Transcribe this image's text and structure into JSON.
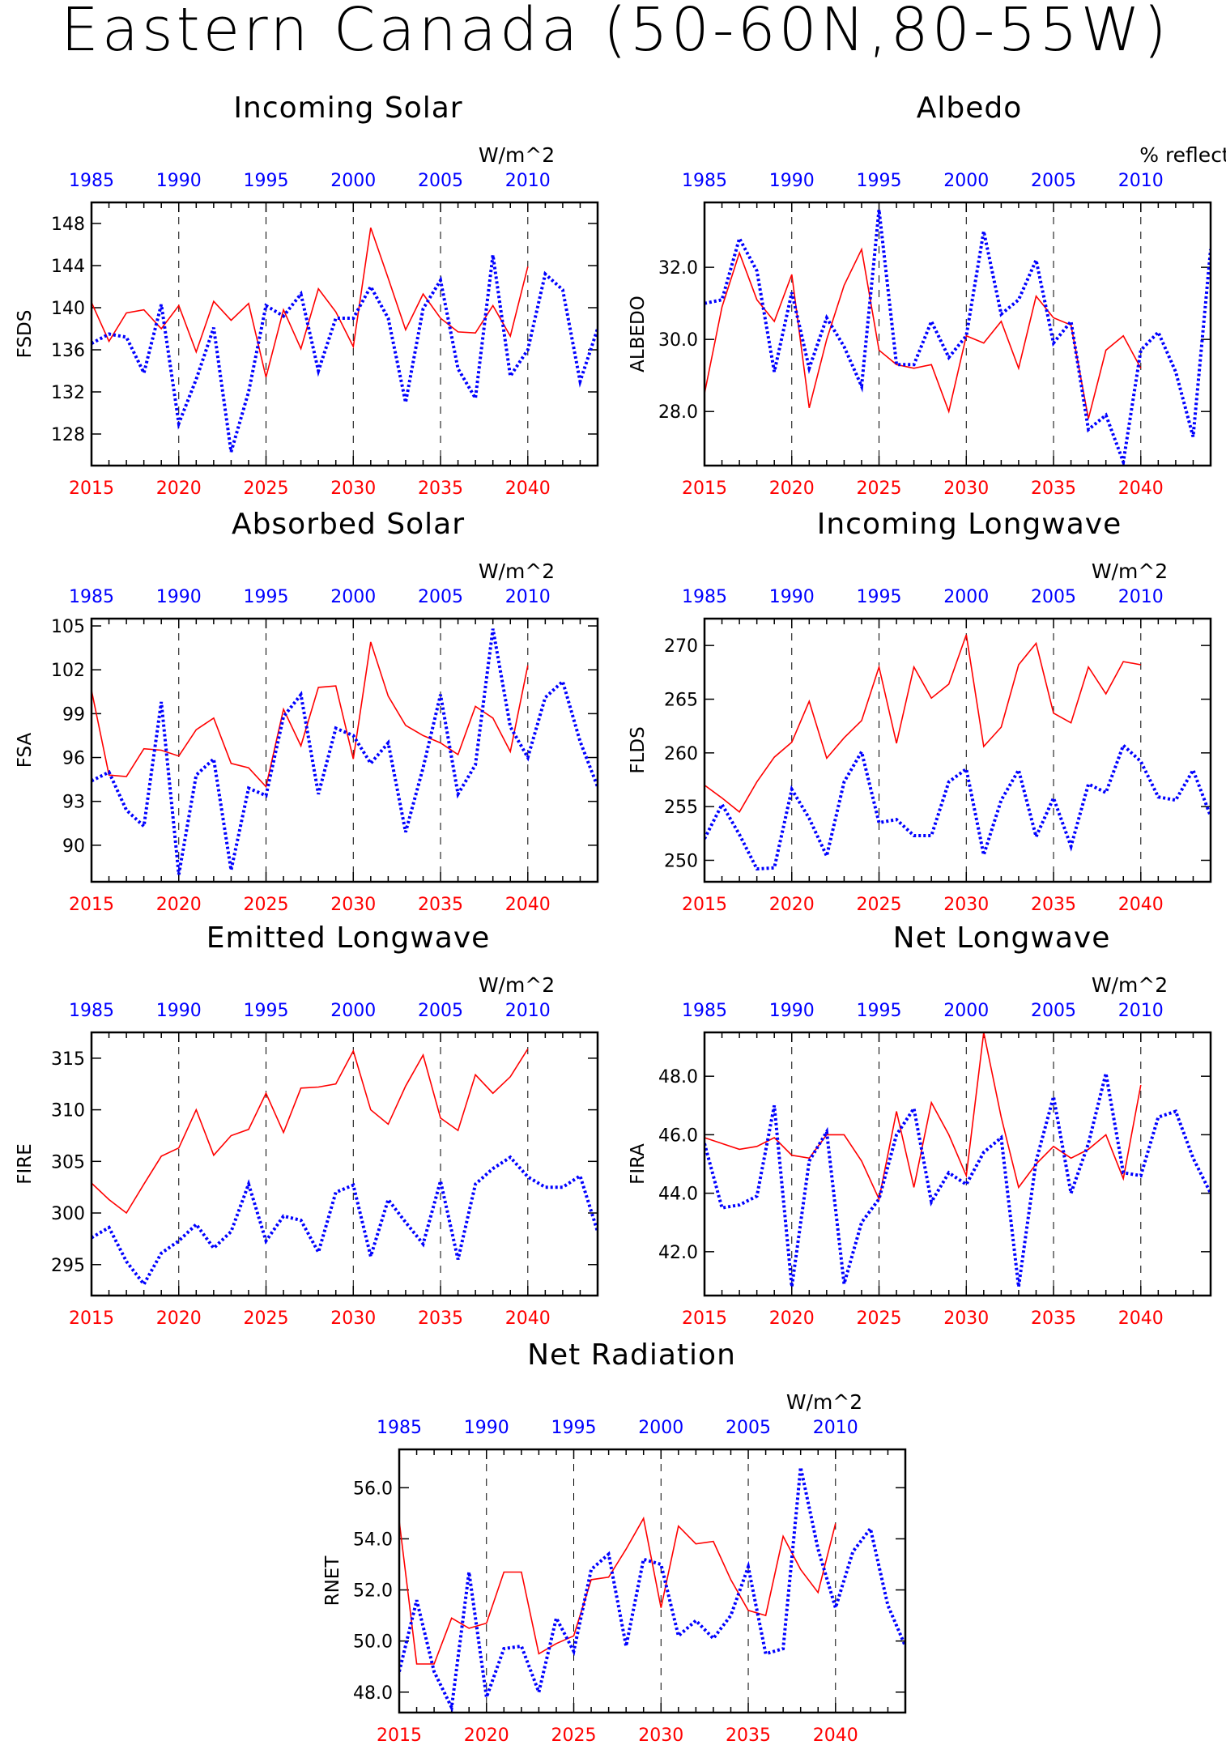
{
  "title": "Eastern Canada (50-60N,80-55W)",
  "colors": {
    "future": "#ff0000",
    "historical": "#0000ff",
    "axis": "#000000"
  },
  "chart_data": [
    {
      "type": "line",
      "title": "Incoming Solar",
      "ylabel": "FSDS",
      "unit": "W/m^2",
      "ylim": [
        125,
        150
      ],
      "yticks": [
        "148",
        "144",
        "140",
        "136",
        "132",
        "128"
      ],
      "bottom_axis_years": [
        "2015",
        "2020",
        "2025",
        "2030",
        "2035",
        "2040"
      ],
      "top_axis_years": [
        "1985",
        "1990",
        "1995",
        "2000",
        "2005",
        "2010"
      ],
      "xlim": [
        2015,
        2044
      ],
      "series": [
        {
          "x": [
            2015,
            2016,
            2017,
            2018,
            2019,
            2020,
            2021,
            2022,
            2023,
            2024,
            2025,
            2026,
            2027,
            2028,
            2029,
            2030,
            2031,
            2032,
            2033,
            2034,
            2035,
            2036,
            2037,
            2038,
            2039,
            2040
          ],
          "values": [
            140.5,
            136.8,
            139.5,
            139.8,
            138.0,
            140.2,
            135.8,
            140.6,
            138.8,
            140.4,
            133.4,
            139.8,
            136.1,
            141.8,
            139.6,
            136.3,
            147.6,
            142.8,
            137.9,
            141.3,
            139.0,
            137.7,
            137.6,
            140.2,
            137.3,
            143.9
          ]
        },
        {
          "x": [
            2015,
            2016,
            2017,
            2018,
            2019,
            2020,
            2021,
            2022,
            2023,
            2024,
            2025,
            2026,
            2027,
            2028,
            2029,
            2030,
            2031,
            2032,
            2033,
            2034,
            2035,
            2036,
            2037,
            2038,
            2039,
            2040,
            2041,
            2042,
            2043,
            2044
          ],
          "values": [
            136.6,
            137.5,
            137.2,
            133.8,
            140.3,
            129.0,
            133.2,
            138.1,
            126.3,
            132.0,
            140.2,
            139.2,
            141.3,
            134.0,
            139.0,
            139.0,
            142.0,
            139.0,
            131.0,
            139.9,
            142.6,
            134.2,
            131.4,
            145.0,
            133.5,
            136.0,
            143.2,
            141.7,
            133.0,
            138.0
          ]
        }
      ]
    },
    {
      "type": "line",
      "title": "Albedo",
      "ylabel": "ALBEDO",
      "unit": "% reflected",
      "ylim": [
        26.5,
        33.8
      ],
      "yticks": [
        "32.0",
        "30.0",
        "28.0"
      ],
      "bottom_axis_years": [
        "2015",
        "2020",
        "2025",
        "2030",
        "2035",
        "2040"
      ],
      "top_axis_years": [
        "1985",
        "1990",
        "1995",
        "2000",
        "2005",
        "2010"
      ],
      "xlim": [
        2015,
        2044
      ],
      "series": [
        {
          "x": [
            2015,
            2016,
            2017,
            2018,
            2019,
            2020,
            2021,
            2022,
            2023,
            2024,
            2025,
            2026,
            2027,
            2028,
            2029,
            2030,
            2031,
            2032,
            2033,
            2034,
            2035,
            2036,
            2037,
            2038,
            2039,
            2040
          ],
          "values": [
            28.5,
            30.9,
            32.4,
            31.1,
            30.5,
            31.8,
            28.1,
            30.0,
            31.5,
            32.5,
            29.7,
            29.3,
            29.2,
            29.3,
            28.0,
            30.1,
            29.9,
            30.5,
            29.2,
            31.2,
            30.6,
            30.4,
            27.8,
            29.7,
            30.1,
            29.2
          ]
        },
        {
          "x": [
            2015,
            2016,
            2017,
            2018,
            2019,
            2020,
            2021,
            2022,
            2023,
            2024,
            2025,
            2026,
            2027,
            2028,
            2029,
            2030,
            2031,
            2032,
            2033,
            2034,
            2035,
            2036,
            2037,
            2038,
            2039,
            2040,
            2041,
            2042,
            2043,
            2044
          ],
          "values": [
            31.0,
            31.1,
            32.8,
            31.9,
            29.1,
            31.3,
            29.2,
            30.6,
            29.8,
            28.7,
            33.6,
            29.3,
            29.3,
            30.5,
            29.5,
            30.1,
            33.0,
            30.7,
            31.1,
            32.2,
            29.9,
            30.5,
            27.5,
            27.9,
            26.6,
            29.7,
            30.2,
            29.1,
            27.3,
            32.5
          ]
        }
      ]
    },
    {
      "type": "line",
      "title": "Absorbed Solar",
      "ylabel": "FSA",
      "unit": "W/m^2",
      "ylim": [
        87.5,
        105.5
      ],
      "yticks": [
        "105",
        "102",
        "99",
        "96",
        "93",
        "90"
      ],
      "bottom_axis_years": [
        "2015",
        "2020",
        "2025",
        "2030",
        "2035",
        "2040"
      ],
      "top_axis_years": [
        "1985",
        "1990",
        "1995",
        "2000",
        "2005",
        "2010"
      ],
      "xlim": [
        2015,
        2044
      ],
      "series": [
        {
          "x": [
            2015,
            2016,
            2017,
            2018,
            2019,
            2020,
            2021,
            2022,
            2023,
            2024,
            2025,
            2026,
            2027,
            2028,
            2029,
            2030,
            2031,
            2032,
            2033,
            2034,
            2035,
            2036,
            2037,
            2038,
            2039,
            2040
          ],
          "values": [
            100.6,
            94.8,
            94.7,
            96.6,
            96.5,
            96.1,
            97.9,
            98.7,
            95.6,
            95.3,
            94.0,
            99.3,
            96.8,
            100.8,
            100.9,
            95.9,
            103.9,
            100.2,
            98.2,
            97.5,
            97.0,
            96.2,
            99.5,
            98.7,
            96.4,
            102.3
          ]
        },
        {
          "x": [
            2015,
            2016,
            2017,
            2018,
            2019,
            2020,
            2021,
            2022,
            2023,
            2024,
            2025,
            2026,
            2027,
            2028,
            2029,
            2030,
            2031,
            2032,
            2033,
            2034,
            2035,
            2036,
            2037,
            2038,
            2039,
            2040,
            2041,
            2042,
            2043,
            2044
          ],
          "values": [
            94.4,
            95.0,
            92.4,
            91.3,
            99.8,
            88.0,
            94.8,
            95.9,
            88.3,
            93.9,
            93.4,
            98.8,
            100.3,
            93.5,
            98.0,
            97.5,
            95.6,
            97.0,
            90.9,
            95.3,
            100.3,
            93.5,
            95.5,
            104.8,
            98.1,
            96.0,
            100.1,
            101.2,
            97.1,
            94.0
          ]
        }
      ]
    },
    {
      "type": "line",
      "title": "Incoming Longwave",
      "ylabel": "FLDS",
      "unit": "W/m^2",
      "ylim": [
        248,
        272.5
      ],
      "yticks": [
        "270",
        "265",
        "260",
        "255",
        "250"
      ],
      "bottom_axis_years": [
        "2015",
        "2020",
        "2025",
        "2030",
        "2035",
        "2040"
      ],
      "top_axis_years": [
        "1985",
        "1990",
        "1995",
        "2000",
        "2005",
        "2010"
      ],
      "xlim": [
        2015,
        2044
      ],
      "series": [
        {
          "x": [
            2015,
            2016,
            2017,
            2018,
            2019,
            2020,
            2021,
            2022,
            2023,
            2024,
            2025,
            2026,
            2027,
            2028,
            2029,
            2030,
            2031,
            2032,
            2033,
            2034,
            2035,
            2036,
            2037,
            2038,
            2039,
            2040
          ],
          "values": [
            257.0,
            255.8,
            254.5,
            257.3,
            259.6,
            261.0,
            264.8,
            259.5,
            261.4,
            263.0,
            268.0,
            260.9,
            268.0,
            265.1,
            266.4,
            271.0,
            260.6,
            262.4,
            268.2,
            270.2,
            263.7,
            262.8,
            268.0,
            265.5,
            268.5,
            268.2
          ]
        },
        {
          "x": [
            2015,
            2016,
            2017,
            2018,
            2019,
            2020,
            2021,
            2022,
            2023,
            2024,
            2025,
            2026,
            2027,
            2028,
            2029,
            2030,
            2031,
            2032,
            2033,
            2034,
            2035,
            2036,
            2037,
            2038,
            2039,
            2040,
            2041,
            2042,
            2043,
            2044
          ],
          "values": [
            252.0,
            255.2,
            252.4,
            249.2,
            249.3,
            256.6,
            253.9,
            250.4,
            257.3,
            260.1,
            253.5,
            253.8,
            252.3,
            252.3,
            257.3,
            258.5,
            250.5,
            255.6,
            258.4,
            252.2,
            255.8,
            251.3,
            257.1,
            256.3,
            260.7,
            259.2,
            255.9,
            255.6,
            258.4,
            254.1
          ]
        }
      ]
    },
    {
      "type": "line",
      "title": "Emitted Longwave",
      "ylabel": "FIRE",
      "unit": "W/m^2",
      "ylim": [
        292,
        317.5
      ],
      "yticks": [
        "315",
        "310",
        "305",
        "300",
        "295"
      ],
      "bottom_axis_years": [
        "2015",
        "2020",
        "2025",
        "2030",
        "2035",
        "2040"
      ],
      "top_axis_years": [
        "1985",
        "1990",
        "1995",
        "2000",
        "2005",
        "2010"
      ],
      "xlim": [
        2015,
        2044
      ],
      "series": [
        {
          "x": [
            2015,
            2016,
            2017,
            2018,
            2019,
            2020,
            2021,
            2022,
            2023,
            2024,
            2025,
            2026,
            2027,
            2028,
            2029,
            2030,
            2031,
            2032,
            2033,
            2034,
            2035,
            2036,
            2037,
            2038,
            2039,
            2040
          ],
          "values": [
            302.9,
            301.3,
            300.0,
            302.8,
            305.5,
            306.3,
            310.0,
            305.6,
            307.5,
            308.1,
            311.6,
            307.8,
            312.1,
            312.2,
            312.5,
            315.7,
            310.0,
            308.6,
            312.3,
            315.3,
            309.2,
            308.0,
            313.4,
            311.6,
            313.2,
            315.9
          ]
        },
        {
          "x": [
            2015,
            2016,
            2017,
            2018,
            2019,
            2020,
            2021,
            2022,
            2023,
            2024,
            2025,
            2026,
            2027,
            2028,
            2029,
            2030,
            2031,
            2032,
            2033,
            2034,
            2035,
            2036,
            2037,
            2038,
            2039,
            2040,
            2041,
            2042,
            2043,
            2044
          ],
          "values": [
            297.6,
            298.6,
            295.3,
            293.1,
            296.1,
            297.3,
            298.9,
            296.6,
            298.2,
            302.8,
            297.3,
            299.7,
            299.3,
            296.2,
            302.0,
            302.7,
            295.8,
            301.3,
            299.1,
            297.0,
            303.1,
            295.5,
            302.8,
            304.3,
            305.4,
            303.5,
            302.5,
            302.5,
            303.6,
            298.2
          ]
        }
      ]
    },
    {
      "type": "line",
      "title": "Net Longwave",
      "ylabel": "FIRA",
      "unit": "W/m^2",
      "ylim": [
        40.5,
        49.5
      ],
      "yticks": [
        "48.0",
        "46.0",
        "44.0",
        "42.0"
      ],
      "bottom_axis_years": [
        "2015",
        "2020",
        "2025",
        "2030",
        "2035",
        "2040"
      ],
      "top_axis_years": [
        "1985",
        "1990",
        "1995",
        "2000",
        "2005",
        "2010"
      ],
      "xlim": [
        2015,
        2044
      ],
      "series": [
        {
          "x": [
            2015,
            2016,
            2017,
            2018,
            2019,
            2020,
            2021,
            2022,
            2023,
            2024,
            2025,
            2026,
            2027,
            2028,
            2029,
            2030,
            2031,
            2032,
            2033,
            2034,
            2035,
            2036,
            2037,
            2038,
            2039,
            2040
          ],
          "values": [
            45.9,
            45.7,
            45.5,
            45.6,
            45.9,
            45.3,
            45.2,
            46.0,
            46.0,
            45.1,
            43.8,
            46.8,
            44.2,
            47.1,
            46.0,
            44.6,
            49.5,
            46.6,
            44.2,
            45.0,
            45.6,
            45.2,
            45.5,
            46.0,
            44.5,
            47.7
          ]
        },
        {
          "x": [
            2015,
            2016,
            2017,
            2018,
            2019,
            2020,
            2021,
            2022,
            2023,
            2024,
            2025,
            2026,
            2027,
            2028,
            2029,
            2030,
            2031,
            2032,
            2033,
            2034,
            2035,
            2036,
            2037,
            2038,
            2039,
            2040,
            2041,
            2042,
            2043,
            2044
          ],
          "values": [
            45.7,
            43.5,
            43.6,
            43.9,
            47.0,
            40.8,
            45.1,
            46.1,
            40.9,
            43.0,
            43.8,
            46.0,
            46.9,
            43.7,
            44.7,
            44.3,
            45.4,
            45.9,
            40.8,
            45.1,
            47.3,
            44.0,
            45.7,
            48.1,
            44.7,
            44.6,
            46.6,
            46.8,
            45.2,
            44.0
          ]
        }
      ]
    },
    {
      "type": "line",
      "title": "Net Radiation",
      "ylabel": "RNET",
      "unit": "W/m^2",
      "ylim": [
        47.2,
        57.5
      ],
      "yticks": [
        "56.0",
        "54.0",
        "52.0",
        "50.0",
        "48.0"
      ],
      "bottom_axis_years": [
        "2015",
        "2020",
        "2025",
        "2030",
        "2035",
        "2040"
      ],
      "top_axis_years": [
        "1985",
        "1990",
        "1995",
        "2000",
        "2005",
        "2010"
      ],
      "xlim": [
        2015,
        2044
      ],
      "series": [
        {
          "x": [
            2015,
            2016,
            2017,
            2018,
            2019,
            2020,
            2021,
            2022,
            2023,
            2024,
            2025,
            2026,
            2027,
            2028,
            2029,
            2030,
            2031,
            2032,
            2033,
            2034,
            2035,
            2036,
            2037,
            2038,
            2039,
            2040
          ],
          "values": [
            54.7,
            49.1,
            49.1,
            50.9,
            50.5,
            50.7,
            52.7,
            52.7,
            49.5,
            49.9,
            50.2,
            52.4,
            52.5,
            53.6,
            54.8,
            51.3,
            54.5,
            53.8,
            53.9,
            52.4,
            51.2,
            51.0,
            54.1,
            52.8,
            51.9,
            54.6
          ]
        },
        {
          "x": [
            2015,
            2016,
            2017,
            2018,
            2019,
            2020,
            2021,
            2022,
            2023,
            2024,
            2025,
            2026,
            2027,
            2028,
            2029,
            2030,
            2031,
            2032,
            2033,
            2034,
            2035,
            2036,
            2037,
            2038,
            2039,
            2040,
            2041,
            2042,
            2043,
            2044
          ],
          "values": [
            48.8,
            51.6,
            48.8,
            47.4,
            52.7,
            47.8,
            49.7,
            49.8,
            48.0,
            50.9,
            49.6,
            52.8,
            53.4,
            49.8,
            53.2,
            53.0,
            50.2,
            50.8,
            50.1,
            51.0,
            52.9,
            49.5,
            49.7,
            56.8,
            53.6,
            51.3,
            53.5,
            54.4,
            51.4,
            49.8
          ]
        }
      ]
    }
  ]
}
